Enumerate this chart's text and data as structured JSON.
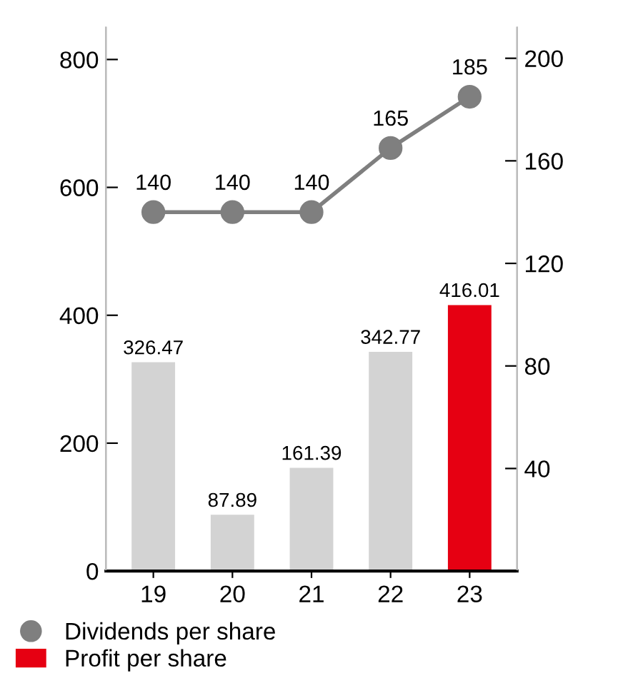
{
  "chart_data": {
    "type": "bar",
    "categories": [
      "19",
      "20",
      "21",
      "22",
      "23"
    ],
    "series": [
      {
        "name": "Profit per share",
        "color": "#e60012",
        "colors": [
          "#d3d3d3",
          "#d3d3d3",
          "#d3d3d3",
          "#d3d3d3",
          "#e60012"
        ],
        "values": [
          326.47,
          87.89,
          161.39,
          342.77,
          416.01
        ]
      },
      {
        "name": "Dividends per share",
        "type": "line",
        "axis": "y2",
        "color": "#7f7f7f",
        "values": [
          140,
          140,
          140,
          165,
          185
        ]
      }
    ],
    "ylim": [
      0,
      850
    ],
    "yticks": [
      0,
      200,
      400,
      600,
      800
    ],
    "y2lim": [
      0,
      212
    ],
    "y2ticks": [
      40,
      80,
      120,
      160,
      200
    ],
    "data_labels": true,
    "grid": false,
    "legend": "bottom",
    "marker": "circle",
    "line_style": "solid"
  }
}
